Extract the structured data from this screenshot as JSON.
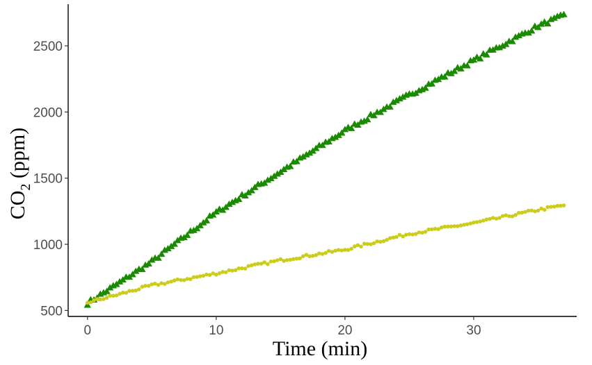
{
  "chart_data": {
    "type": "scatter",
    "title": "",
    "xlabel": "Time (min)",
    "ylabel": {
      "main": "CO",
      "sub": "2",
      "rest": " (ppm)"
    },
    "xlim": [
      -1.5,
      38
    ],
    "ylim": [
      455,
      2815
    ],
    "xticks": [
      0,
      10,
      20,
      30
    ],
    "yticks": [
      500,
      1000,
      1500,
      2000,
      2500
    ],
    "grid": false,
    "legend": "none",
    "series": [
      {
        "marker": "triangle",
        "color": "#1a8a00",
        "start": {
          "x": 0.0,
          "y": 555
        },
        "end": {
          "x": 37.0,
          "y": 2730
        },
        "step": 0.25,
        "noise": 14,
        "values": [
          [
            0.0,
            555
          ],
          [
            5.0,
            870
          ],
          [
            10.0,
            1240
          ],
          [
            15.0,
            1550
          ],
          [
            20.0,
            1860
          ],
          [
            25.0,
            2130
          ],
          [
            30.0,
            2390
          ],
          [
            35.0,
            2650
          ],
          [
            37.0,
            2730
          ]
        ]
      },
      {
        "marker": "circle",
        "color": "#cccc1a",
        "start": {
          "x": 0.0,
          "y": 560
        },
        "end": {
          "x": 37.0,
          "y": 1295
        },
        "step": 0.25,
        "noise": 10,
        "values": [
          [
            0.0,
            560
          ],
          [
            2.0,
            610
          ],
          [
            5.0,
            690
          ],
          [
            10.0,
            780
          ],
          [
            15.0,
            880
          ],
          [
            20.0,
            960
          ],
          [
            25.0,
            1080
          ],
          [
            30.0,
            1160
          ],
          [
            35.0,
            1260
          ],
          [
            37.0,
            1295
          ]
        ]
      }
    ]
  }
}
